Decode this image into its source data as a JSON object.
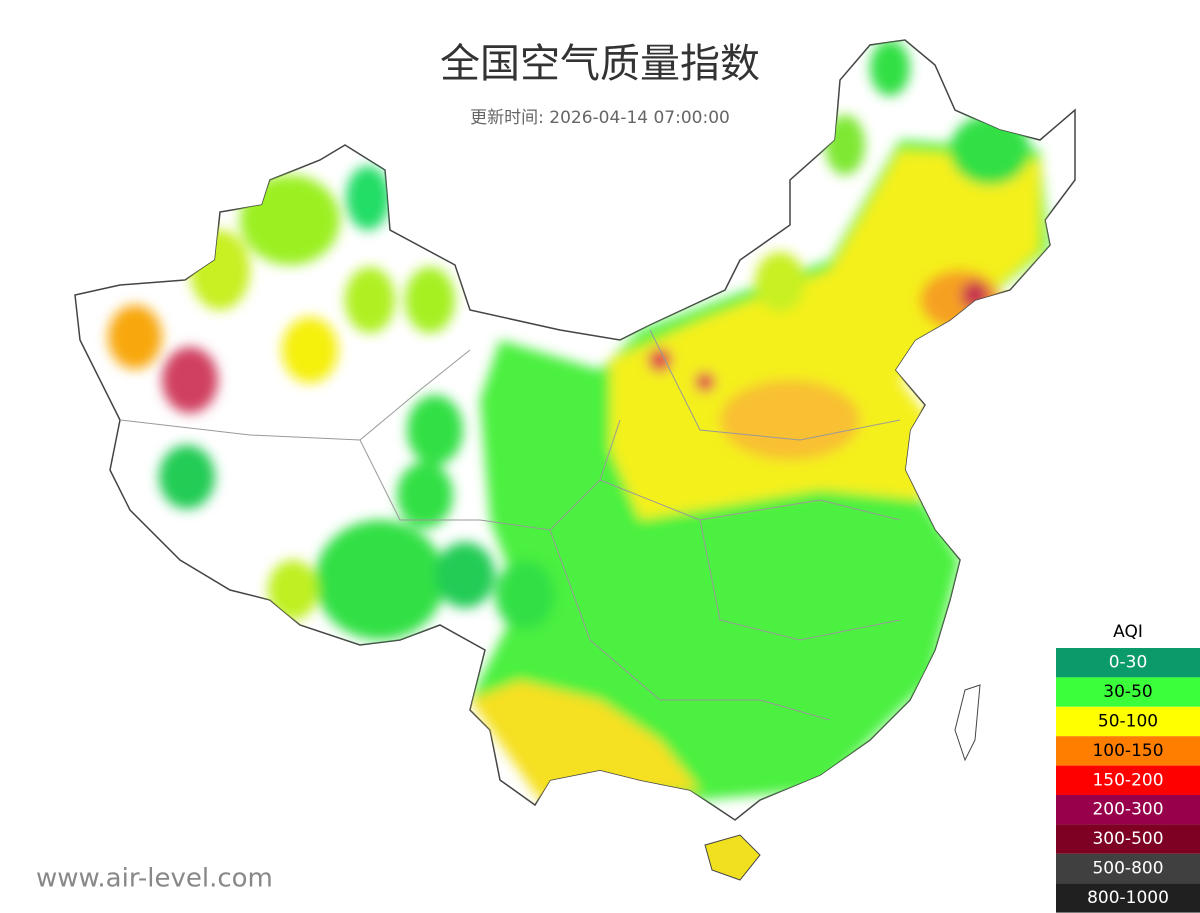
{
  "header": {
    "title": "全国空气质量指数",
    "subtitle": "更新时间: 2026-04-14 07:00:00"
  },
  "legend": {
    "title": "AQI",
    "items": [
      {
        "label": "0-30",
        "color": "#0b9a6a"
      },
      {
        "label": "30-50",
        "color": "#3cff3c"
      },
      {
        "label": "50-100",
        "color": "#ffff00"
      },
      {
        "label": "100-150",
        "color": "#ff7e00"
      },
      {
        "label": "150-200",
        "color": "#ff0000"
      },
      {
        "label": "200-300",
        "color": "#99004c"
      },
      {
        "label": "300-500",
        "color": "#7e0023"
      },
      {
        "label": "500-800",
        "color": "#404040"
      },
      {
        "label": "800-1000",
        "color": "#202020"
      }
    ]
  },
  "footer": {
    "watermark": "www.air-level.com"
  }
}
